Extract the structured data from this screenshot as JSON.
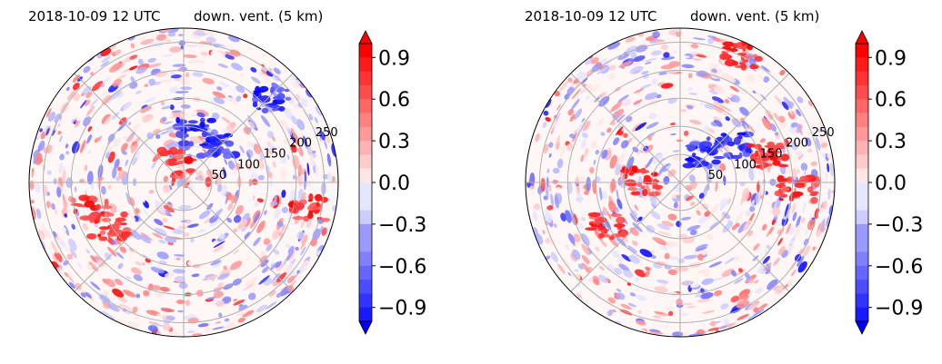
{
  "colors": {
    "date_text": "#0000ff",
    "positive": "#ff0000",
    "negative": "#0000ff",
    "neutral": "#ffffff",
    "grid": "#b0b0b0"
  },
  "colorbar": {
    "ticks": [
      "0.9",
      "0.6",
      "0.3",
      "0.0",
      "−0.3",
      "−0.6",
      "−0.9"
    ],
    "tick_values": [
      0.9,
      0.6,
      0.3,
      0.0,
      -0.3,
      -0.6,
      -0.9
    ],
    "range": [
      -1.0,
      1.0
    ],
    "extend": "both"
  },
  "chart_data": [
    {
      "type": "heatmap",
      "projection": "polar",
      "title_date": "2018-10-09 12 UTC",
      "title_var": "down. vent. (5 km)",
      "radial_ticks": [
        "50",
        "100",
        "150",
        "200",
        "250"
      ],
      "radial_values": [
        50,
        100,
        150,
        200,
        250
      ],
      "value_range": [
        -1.0,
        1.0
      ],
      "grid": true,
      "seed": 11
    },
    {
      "type": "heatmap",
      "projection": "polar",
      "title_date": "2018-10-09 12 UTC",
      "title_var": "down. vent. (5 km)",
      "radial_ticks": [
        "50",
        "100",
        "150",
        "200",
        "250"
      ],
      "radial_values": [
        50,
        100,
        150,
        200,
        250
      ],
      "value_range": [
        -1.0,
        1.0
      ],
      "grid": true,
      "seed": 37
    }
  ]
}
